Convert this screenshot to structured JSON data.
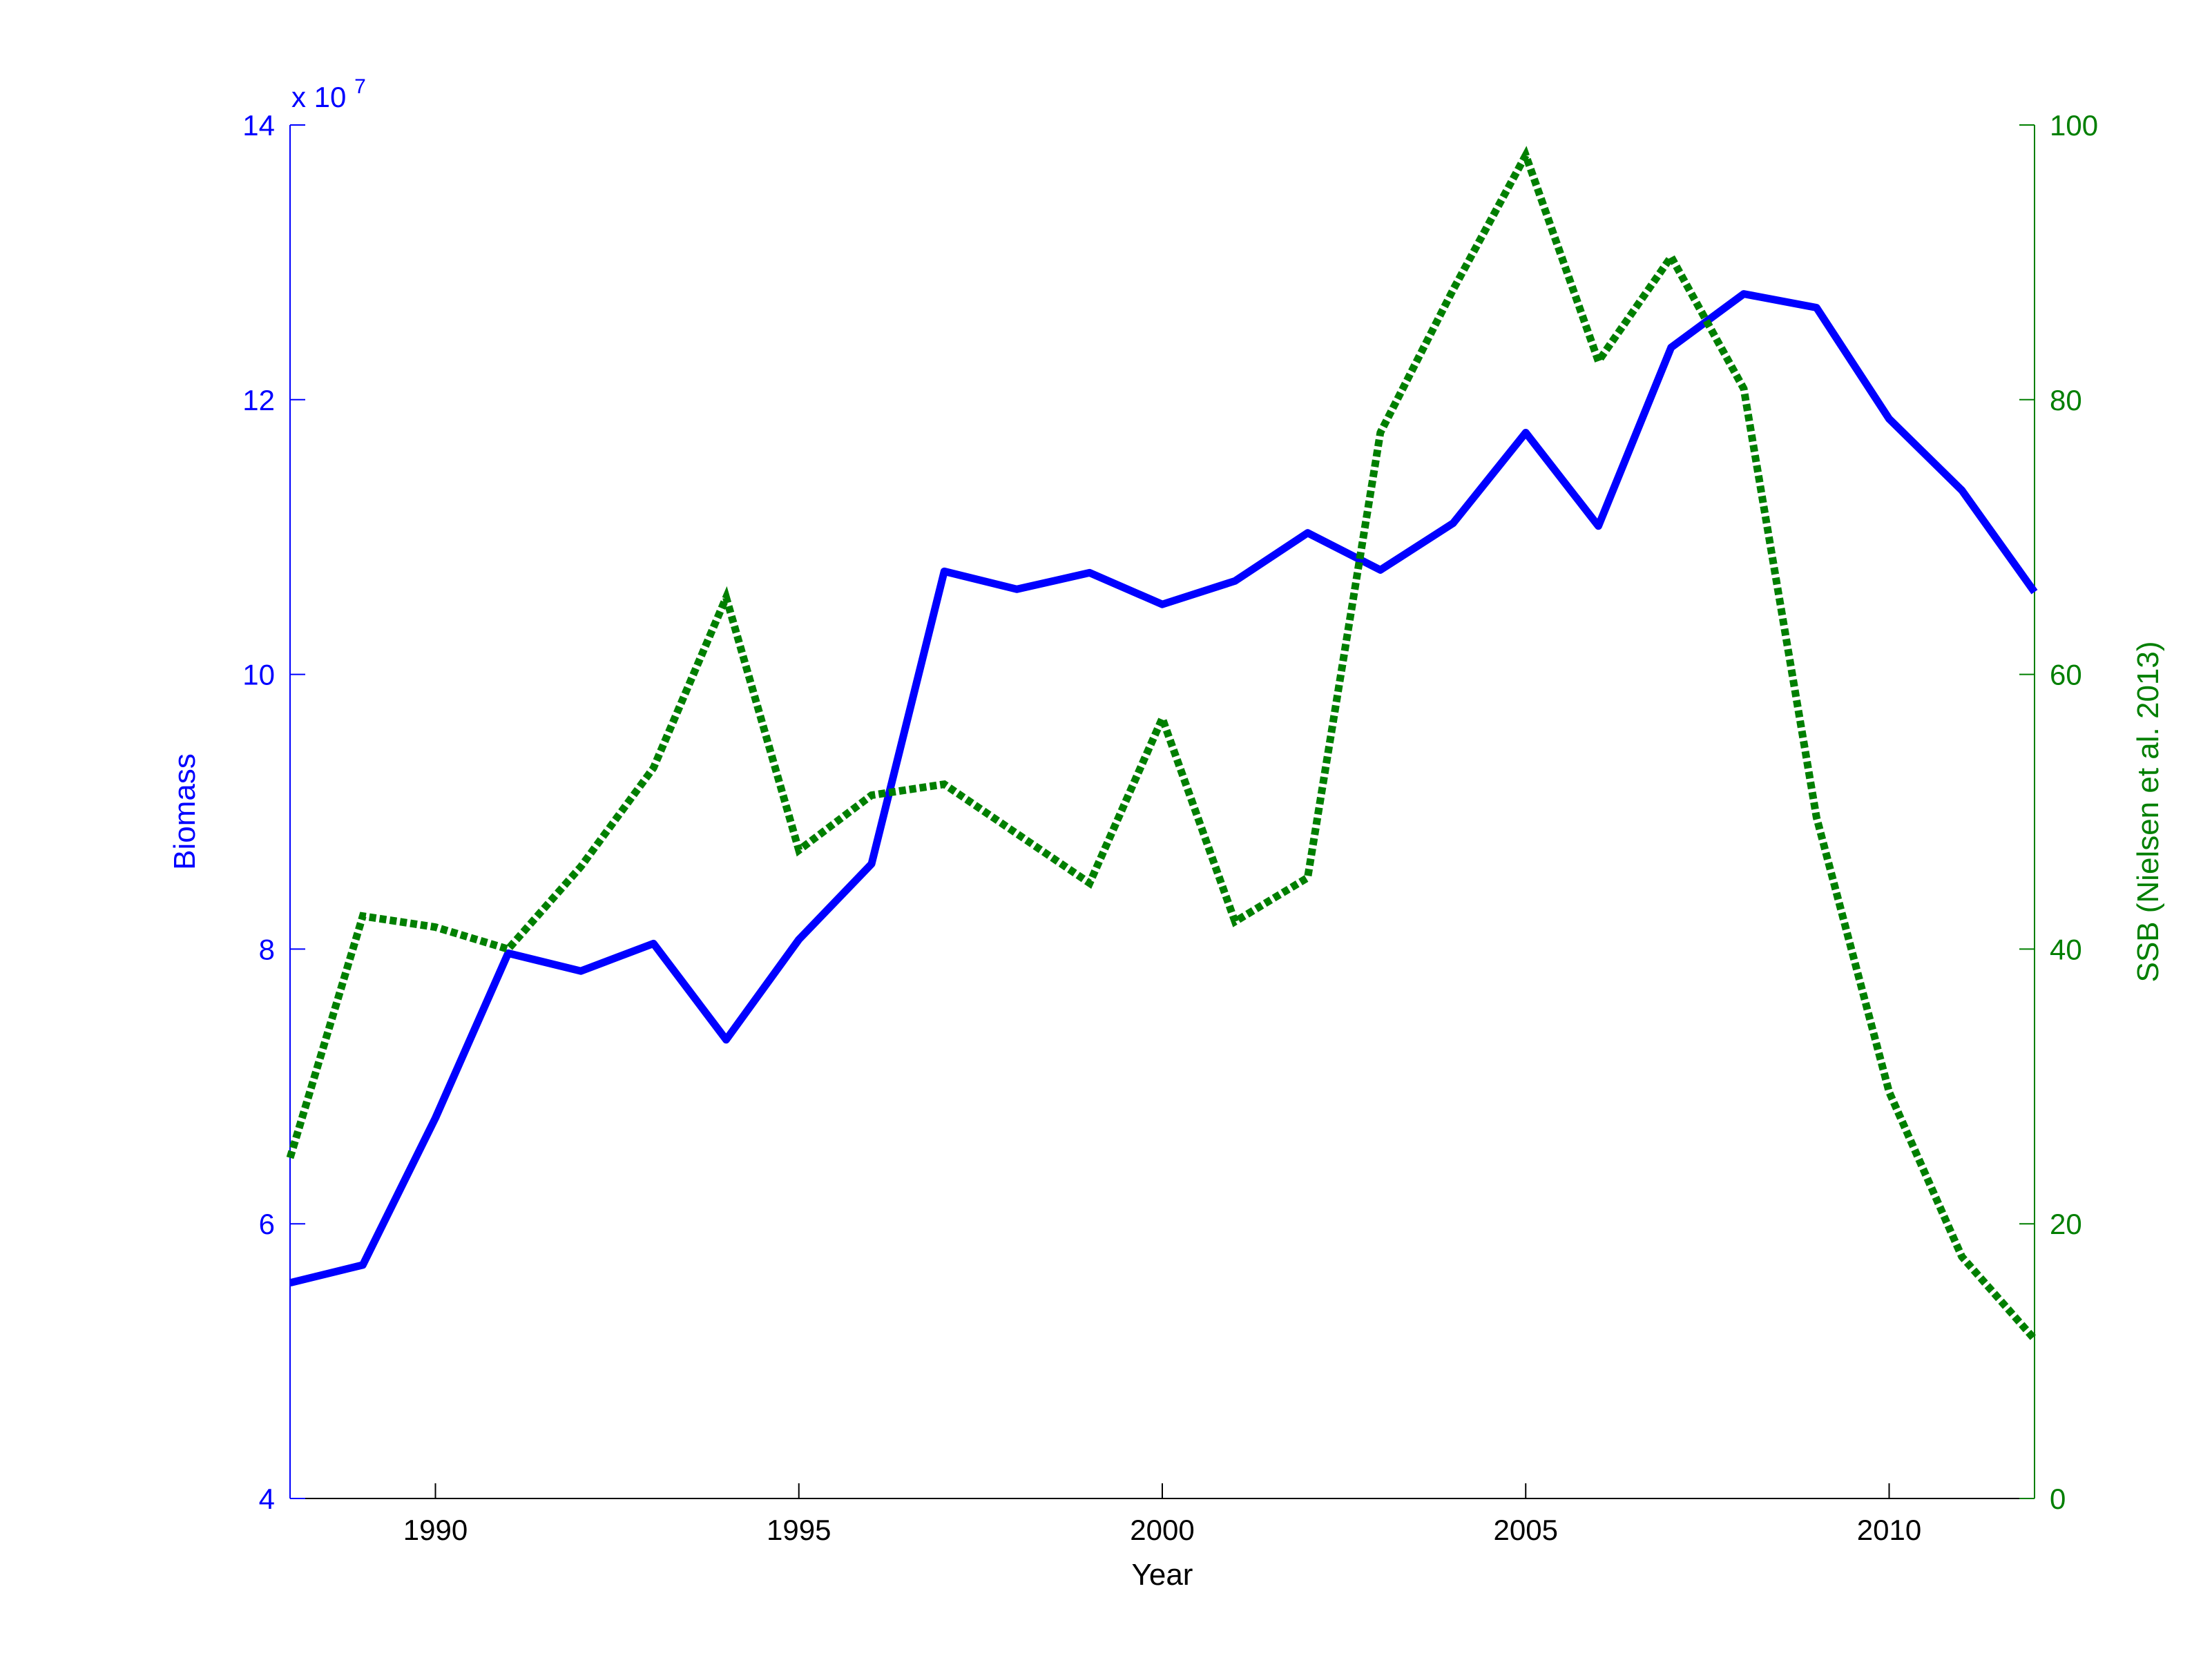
{
  "chart_data": {
    "type": "line",
    "xlabel": "Year",
    "xlim": [
      1988,
      2012
    ],
    "xticks": [
      1990,
      1995,
      2000,
      2005,
      2010
    ],
    "left_axis": {
      "label": "Biomass",
      "ylim": [
        4,
        14
      ],
      "yticks": [
        4,
        6,
        8,
        10,
        12,
        14
      ],
      "exponent_label": "x 10",
      "exponent": "7",
      "color": "#0000ff"
    },
    "right_axis": {
      "label": "SSB (Nielsen et al. 2013)",
      "ylim": [
        0,
        100
      ],
      "yticks": [
        0,
        20,
        40,
        60,
        80,
        100
      ],
      "color": "#007f00"
    },
    "grid": false,
    "series": [
      {
        "axis": "left",
        "style": "solid",
        "color": "#0000ff",
        "x": [
          1988,
          1989,
          1990,
          1991,
          1992,
          1993,
          1994,
          1995,
          1996,
          1997,
          1998,
          1999,
          2000,
          2001,
          2002,
          2003,
          2004,
          2005,
          2006,
          2007,
          2008,
          2009,
          2010,
          2011,
          2012
        ],
        "values": [
          5.57,
          5.7,
          6.77,
          7.97,
          7.84,
          8.04,
          7.34,
          8.07,
          8.62,
          10.75,
          10.62,
          10.74,
          10.51,
          10.68,
          11.03,
          10.76,
          11.1,
          11.76,
          11.08,
          12.38,
          12.77,
          12.67,
          11.86,
          11.34,
          10.6
        ]
      },
      {
        "axis": "right",
        "style": "dotted",
        "color": "#007f00",
        "x": [
          1988,
          1989,
          1990,
          1991,
          1992,
          1993,
          1994,
          1995,
          1996,
          1997,
          1998,
          1999,
          2000,
          2001,
          2002,
          2003,
          2004,
          2005,
          2006,
          2007,
          2008,
          2009,
          2010,
          2011,
          2012
        ],
        "values": [
          24.8,
          42.4,
          41.6,
          40.0,
          46.0,
          53.2,
          65.6,
          47.2,
          51.2,
          52.0,
          48.4,
          44.8,
          56.8,
          42.0,
          45.2,
          77.6,
          88.0,
          97.8,
          82.8,
          90.4,
          80.8,
          49.6,
          29.6,
          17.6,
          11.6
        ]
      }
    ]
  }
}
